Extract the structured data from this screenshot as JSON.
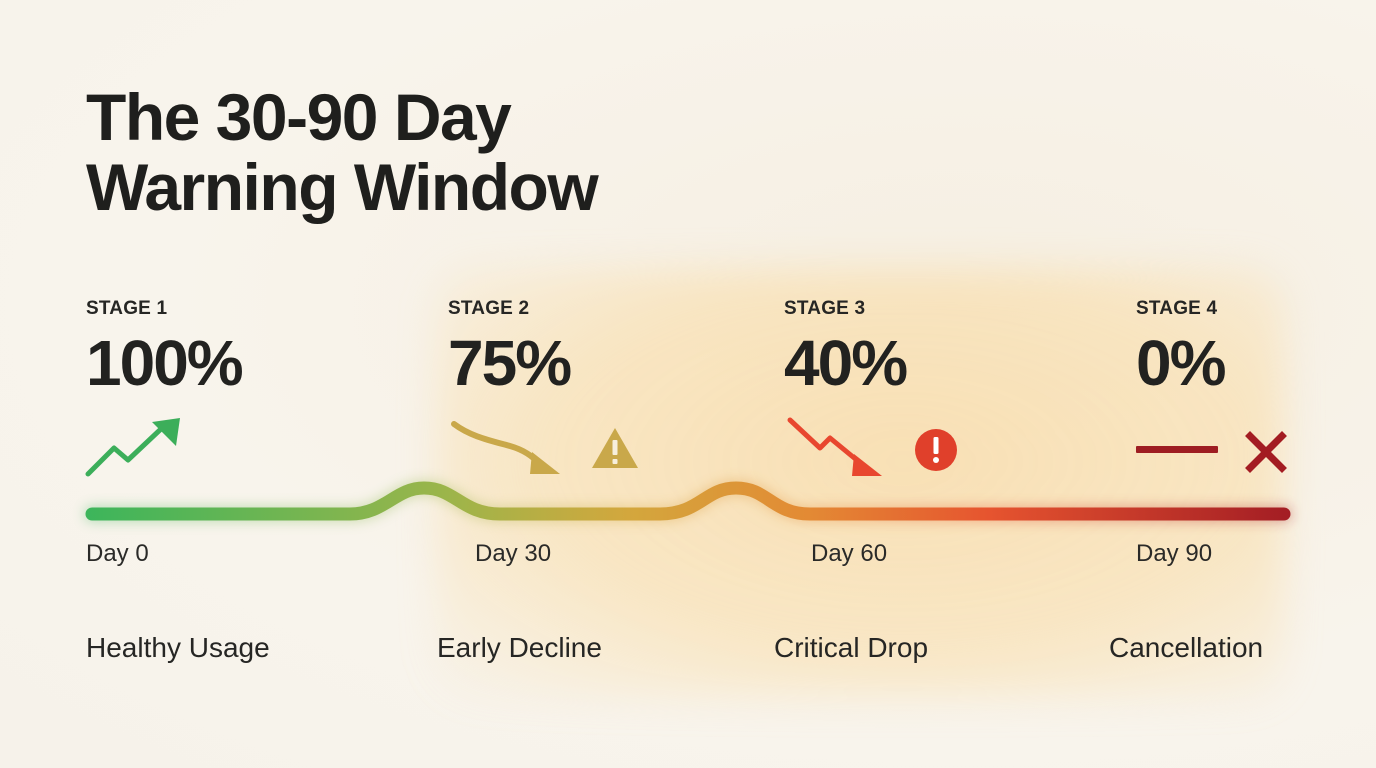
{
  "title_line1": "The 30-90 Day",
  "title_line2": "Warning Window",
  "stages": [
    {
      "label": "STAGE 1",
      "value": "100%",
      "day": "Day 0",
      "description": "Healthy Usage",
      "icon": "trend-up-icon",
      "color": "#3cae5a"
    },
    {
      "label": "STAGE 2",
      "value": "75%",
      "day": "Day 30",
      "description": "Early Decline",
      "icon": "warning-icon",
      "color": "#c9a84a"
    },
    {
      "label": "STAGE 3",
      "value": "40%",
      "day": "Day 60",
      "description": "Critical Drop",
      "icon": "alert-icon",
      "color": "#e8472f"
    },
    {
      "label": "STAGE 4",
      "value": "0%",
      "day": "Day 90",
      "description": "Cancellation",
      "icon": "close-icon",
      "color": "#a31c22"
    }
  ],
  "timeline_gradient": [
    "#3cb55b",
    "#b8b445",
    "#e09a3a",
    "#e8562f",
    "#a81d24"
  ]
}
